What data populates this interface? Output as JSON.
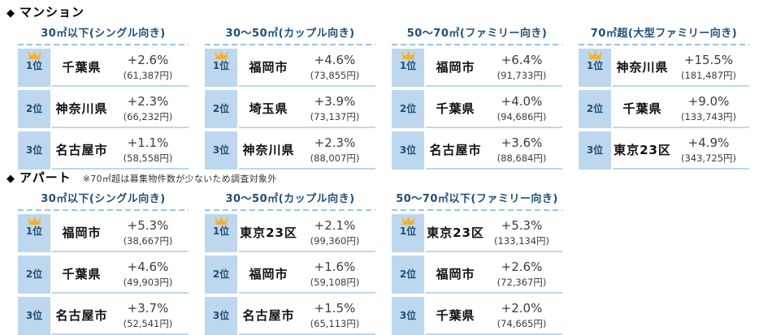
{
  "colors": {
    "background": "#ffffff",
    "rank_cell_blue": "#bdd7ee",
    "row_border_blue": "#bdd7ee",
    "dash_blue": "#9dc3e6",
    "header_blue": "#1f4e79",
    "crown_gold": "#f2b22d",
    "value_text": "#3d3d3d",
    "name_text": "#111111"
  },
  "sections": [
    {
      "bullet": "◆",
      "title": "マンション",
      "note": "",
      "tables": [
        {
          "header": "30㎡以下(シングル向き)",
          "rows": [
            {
              "rank": "1位",
              "crown": true,
              "name": "千葉県",
              "percent": "+2.6%",
              "price": "(61,387円)"
            },
            {
              "rank": "2位",
              "crown": false,
              "name": "神奈川県",
              "percent": "+2.3%",
              "price": "(66,232円)"
            },
            {
              "rank": "3位",
              "crown": false,
              "name": "名古屋市",
              "percent": "+1.1%",
              "price": "(58,558円)"
            }
          ]
        },
        {
          "header": "30〜50㎡(カップル向き)",
          "rows": [
            {
              "rank": "1位",
              "crown": true,
              "name": "福岡市",
              "percent": "+4.6%",
              "price": "(73,855円)"
            },
            {
              "rank": "2位",
              "crown": false,
              "name": "埼玉県",
              "percent": "+3.9%",
              "price": "(73,137円)"
            },
            {
              "rank": "3位",
              "crown": false,
              "name": "神奈川県",
              "percent": "+2.3%",
              "price": "(88,007円)"
            }
          ]
        },
        {
          "header": "50〜70㎡(ファミリー向き)",
          "rows": [
            {
              "rank": "1位",
              "crown": true,
              "name": "福岡市",
              "percent": "+6.4%",
              "price": "(91,733円)"
            },
            {
              "rank": "2位",
              "crown": false,
              "name": "千葉県",
              "percent": "+4.0%",
              "price": "(94,686円)"
            },
            {
              "rank": "3位",
              "crown": false,
              "name": "名古屋市",
              "percent": "+3.6%",
              "price": "(88,684円)"
            }
          ]
        },
        {
          "header": "70㎡超(大型ファミリー向き)",
          "rows": [
            {
              "rank": "1位",
              "crown": true,
              "name": "神奈川県",
              "percent": "+15.5%",
              "price": "(181,487円)"
            },
            {
              "rank": "2位",
              "crown": false,
              "name": "千葉県",
              "percent": "+9.0%",
              "price": "(133,743円)"
            },
            {
              "rank": "3位",
              "crown": false,
              "name": "東京23区",
              "percent": "+4.9%",
              "price": "(343,725円)"
            }
          ]
        }
      ]
    },
    {
      "bullet": "◆",
      "title": "アパート",
      "note": "※70㎡超は募集物件数が少ないため調査対象外",
      "tables": [
        {
          "header": "30㎡以下(シングル向き)",
          "rows": [
            {
              "rank": "1位",
              "crown": true,
              "name": "福岡市",
              "percent": "+5.3%",
              "price": "(38,667円)"
            },
            {
              "rank": "2位",
              "crown": false,
              "name": "千葉県",
              "percent": "+4.6%",
              "price": "(49,903円)"
            },
            {
              "rank": "3位",
              "crown": false,
              "name": "名古屋市",
              "percent": "+3.7%",
              "price": "(52,541円)"
            }
          ]
        },
        {
          "header": "30〜50㎡(カップル向き)",
          "rows": [
            {
              "rank": "1位",
              "crown": true,
              "name": "東京23区",
              "percent": "+2.1%",
              "price": "(99,360円)"
            },
            {
              "rank": "2位",
              "crown": false,
              "name": "福岡市",
              "percent": "+1.6%",
              "price": "(59,108円)"
            },
            {
              "rank": "3位",
              "crown": false,
              "name": "名古屋市",
              "percent": "+1.5%",
              "price": "(65,113円)"
            }
          ]
        },
        {
          "header": "50〜70㎡以下(ファミリー向き)",
          "rows": [
            {
              "rank": "1位",
              "crown": true,
              "name": "東京23区",
              "percent": "+5.3%",
              "price": "(133,134円)"
            },
            {
              "rank": "2位",
              "crown": false,
              "name": "福岡市",
              "percent": "+2.6%",
              "price": "(72,367円)"
            },
            {
              "rank": "3位",
              "crown": false,
              "name": "千葉県",
              "percent": "+2.0%",
              "price": "(74,665円)"
            }
          ]
        }
      ]
    }
  ]
}
